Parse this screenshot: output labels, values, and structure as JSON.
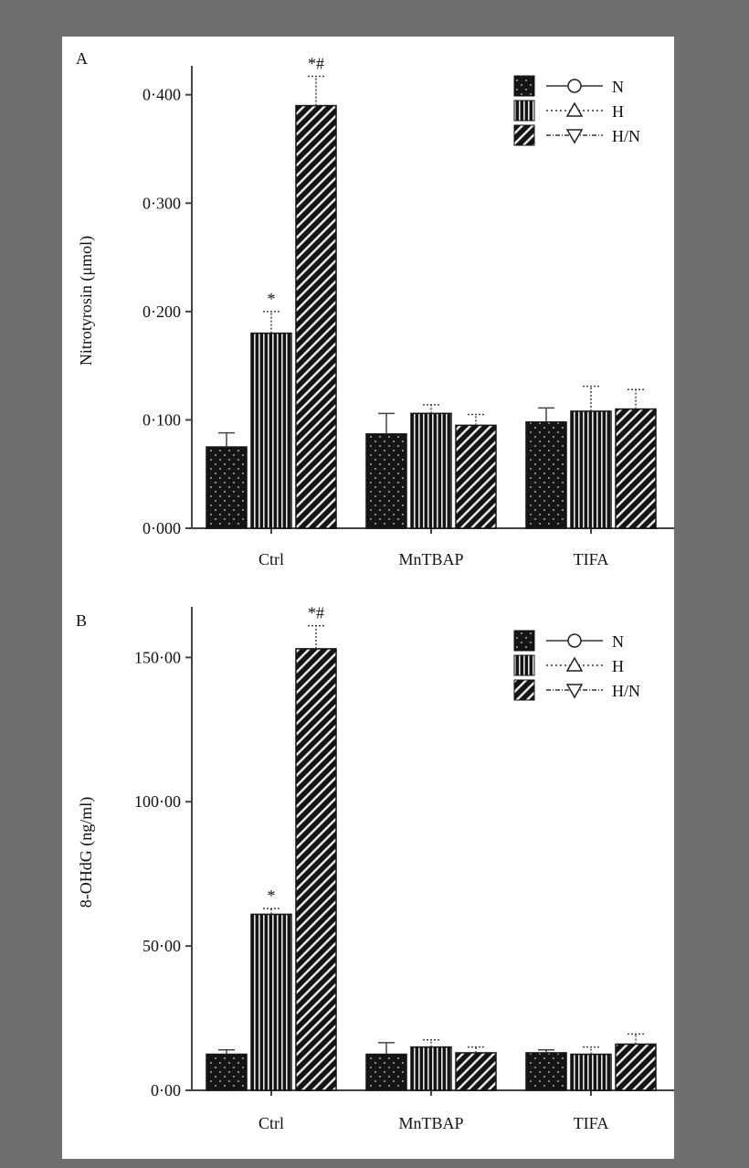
{
  "colors": {
    "bar": "#151515",
    "axis": "#444444",
    "background": "#ffffff",
    "frame": "#6f6f6f"
  },
  "legend": {
    "entries": [
      {
        "label": "N",
        "pattern": "dots",
        "marker": "circle"
      },
      {
        "label": "H",
        "pattern": "vertical-stripes",
        "marker": "triangle-up"
      },
      {
        "label": "H/N",
        "pattern": "diagonal-stripes",
        "marker": "triangle-down"
      }
    ],
    "placement": "top-right"
  },
  "chart_data": [
    {
      "type": "bar",
      "panel_label": "A",
      "ylabel": "Nitrotyrosin (μmol)",
      "xlabel": "",
      "categories": [
        "Ctrl",
        "MnTBAP",
        "TIFA"
      ],
      "ylim": [
        0,
        0.42
      ],
      "yticks": [
        0,
        0.1,
        0.2,
        0.3,
        0.4
      ],
      "ytick_labels": [
        "0·000",
        "0·100",
        "0·200",
        "0·300",
        "0·400"
      ],
      "series": [
        {
          "name": "N",
          "values": [
            0.075,
            0.087,
            0.098
          ],
          "errors": [
            0.013,
            0.019,
            0.013
          ]
        },
        {
          "name": "H",
          "values": [
            0.18,
            0.106,
            0.108
          ],
          "errors": [
            0.02,
            0.008,
            0.023
          ]
        },
        {
          "name": "H/N",
          "values": [
            0.39,
            0.095,
            0.11
          ],
          "errors": [
            0.027,
            0.01,
            0.018
          ]
        }
      ],
      "annotations": [
        {
          "category": "Ctrl",
          "series": "H",
          "text": "*"
        },
        {
          "category": "Ctrl",
          "series": "H/N",
          "text": "*#"
        }
      ]
    },
    {
      "type": "bar",
      "panel_label": "B",
      "ylabel": "8-OHdG (ng/ml)",
      "xlabel": "",
      "categories": [
        "Ctrl",
        "MnTBAP",
        "TIFA"
      ],
      "ylim": [
        0,
        165
      ],
      "yticks": [
        0,
        50,
        100,
        150
      ],
      "ytick_labels": [
        "0·00",
        "50·00",
        "100·00",
        "150·00"
      ],
      "series": [
        {
          "name": "N",
          "values": [
            12.5,
            12.5,
            13
          ],
          "errors": [
            1.5,
            4,
            1
          ]
        },
        {
          "name": "H",
          "values": [
            61,
            15,
            12.5
          ],
          "errors": [
            2,
            2.5,
            2.5
          ]
        },
        {
          "name": "H/N",
          "values": [
            153,
            13,
            16
          ],
          "errors": [
            8,
            2,
            3.5
          ]
        }
      ],
      "annotations": [
        {
          "category": "Ctrl",
          "series": "H",
          "text": "*"
        },
        {
          "category": "Ctrl",
          "series": "H/N",
          "text": "*#"
        }
      ]
    }
  ]
}
